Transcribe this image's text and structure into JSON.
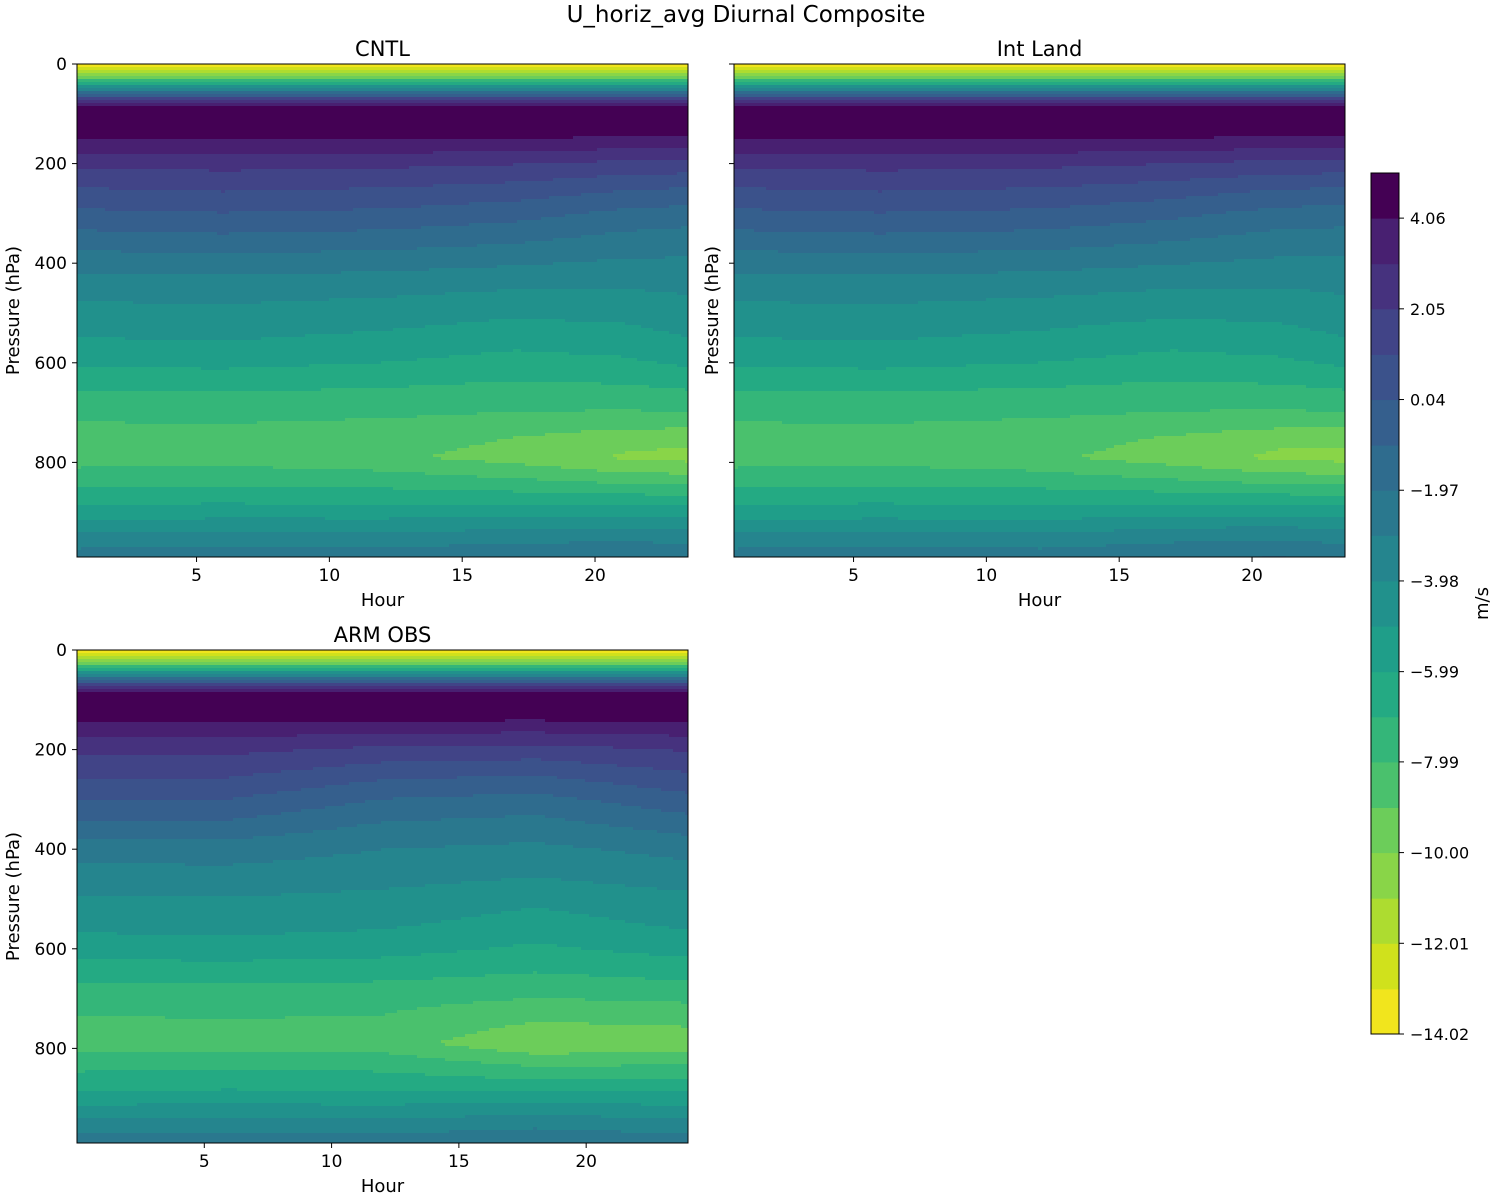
{
  "figure": {
    "title": "U_horiz_avg Diurnal Composite"
  },
  "chart_data": {
    "type": "contourf",
    "title": "U_horiz_avg Diurnal Composite",
    "colorbar": {
      "label": "m/s",
      "vmin": -14.02,
      "vmax": 5.1,
      "levels": [
        -14.02,
        -13.02,
        -12.01,
        -11.01,
        -10.0,
        -9.0,
        -7.99,
        -6.99,
        -5.99,
        -4.98,
        -3.98,
        -2.97,
        -1.97,
        -0.97,
        0.04,
        1.04,
        2.05,
        3.05,
        4.06,
        5.06
      ],
      "tick_labels": [
        "4.06",
        "2.05",
        "0.04",
        "−1.97",
        "−3.98",
        "−5.99",
        "−7.99",
        "−10.00",
        "−12.01",
        "−14.02"
      ],
      "tick_values": [
        4.06,
        2.05,
        0.04,
        -1.97,
        -3.98,
        -5.99,
        -7.99,
        -10.0,
        -12.01,
        -14.02
      ],
      "colors": [
        "#f1e51d",
        "#d0e11c",
        "#addc30",
        "#89d548",
        "#6ccd5a",
        "#4ac16d",
        "#34b679",
        "#24aa83",
        "#1f9e89",
        "#21918c",
        "#25858e",
        "#2a788e",
        "#2f6c8e",
        "#355f8d",
        "#3b528b",
        "#414487",
        "#46327e",
        "#482071",
        "#440154"
      ]
    },
    "panels": [
      {
        "id": "cntl",
        "title": "CNTL",
        "xlabel": "Hour",
        "ylabel": "Pressure (hPa)",
        "xlim": [
          0.5,
          23.5
        ],
        "ylim": [
          990,
          0
        ],
        "xticks": [
          5,
          10,
          15,
          20
        ],
        "yticks": [
          0,
          200,
          400,
          600,
          800
        ],
        "show_yticklabels": true,
        "x": [
          0.5,
          6,
          12,
          17,
          21,
          23.5
        ],
        "p": [
          0,
          15,
          30,
          45,
          60,
          70,
          85,
          100,
          125,
          150,
          175,
          200,
          250,
          300,
          350,
          400,
          450,
          500,
          550,
          600,
          650,
          700,
          750,
          790,
          830,
          870,
          900,
          930,
          960,
          990
        ],
        "profile": [
          -14.0,
          -11.5,
          -8.5,
          -5.0,
          -1.0,
          2.0,
          4.0,
          4.9,
          4.9,
          4.0,
          3.0,
          2.0,
          0.5,
          -0.8,
          -1.9,
          -2.9,
          -3.8,
          -4.5,
          -5.2,
          -6.0,
          -7.0,
          -7.9,
          -8.9,
          -9.3,
          -8.0,
          -6.6,
          -5.6,
          -4.5,
          -3.5,
          -2.5
        ],
        "anomaly": [
          [
            0,
            0,
            0,
            0,
            0,
            0
          ],
          [
            0.6,
            0.8,
            0.6,
            0.2,
            -0.4,
            -0.6
          ],
          [
            0.2,
            0.3,
            0.0,
            -0.4,
            -0.2,
            0.2
          ],
          [
            0.7,
            0.8,
            0.5,
            -0.1,
            -0.8,
            -1.0
          ],
          [
            0.1,
            0.2,
            0.2,
            0.4,
            0.6,
            0.4
          ]
        ]
      },
      {
        "id": "int-land",
        "title": "Int Land",
        "xlabel": "Hour",
        "ylabel": "Pressure (hPa)",
        "xlim": [
          0.5,
          23.5
        ],
        "ylim": [
          990,
          0
        ],
        "xticks": [
          5,
          10,
          15,
          20
        ],
        "yticks": [
          0,
          200,
          400,
          600,
          800
        ],
        "show_yticklabels": false,
        "x": [
          0.5,
          6,
          12,
          17,
          21,
          23.5
        ],
        "p": [
          0,
          15,
          30,
          45,
          60,
          70,
          85,
          100,
          125,
          150,
          175,
          200,
          250,
          300,
          350,
          400,
          450,
          500,
          550,
          600,
          650,
          700,
          750,
          790,
          830,
          870,
          900,
          930,
          960,
          990
        ],
        "profile": [
          -14.0,
          -11.5,
          -8.5,
          -5.0,
          -1.0,
          2.0,
          4.0,
          4.9,
          4.9,
          4.0,
          3.0,
          2.0,
          0.5,
          -0.8,
          -1.9,
          -2.9,
          -3.8,
          -4.5,
          -5.2,
          -6.0,
          -7.0,
          -7.9,
          -8.9,
          -9.3,
          -8.0,
          -6.6,
          -5.6,
          -4.5,
          -3.5,
          -2.5
        ],
        "anomaly": [
          [
            0,
            0,
            0,
            0,
            0,
            0
          ],
          [
            0.6,
            0.8,
            0.6,
            0.1,
            -0.5,
            -0.6
          ],
          [
            0.2,
            0.3,
            0.0,
            -0.4,
            -0.2,
            0.2
          ],
          [
            0.7,
            0.8,
            0.5,
            -0.2,
            -0.9,
            -1.0
          ],
          [
            0.1,
            0.2,
            0.1,
            0.5,
            0.7,
            0.4
          ]
        ]
      },
      {
        "id": "arm-obs",
        "title": "ARM OBS",
        "xlabel": "Hour",
        "ylabel": "Pressure (hPa)",
        "xlim": [
          0,
          24
        ],
        "ylim": [
          990,
          0
        ],
        "xticks": [
          5,
          10,
          15,
          20
        ],
        "yticks": [
          0,
          200,
          400,
          600,
          800
        ],
        "show_yticklabels": true,
        "x": [
          0,
          6,
          12,
          18,
          24
        ],
        "p": [
          0,
          15,
          30,
          45,
          60,
          70,
          85,
          100,
          125,
          150,
          175,
          200,
          250,
          300,
          350,
          400,
          450,
          500,
          550,
          600,
          650,
          700,
          750,
          790,
          830,
          870,
          900,
          930,
          960,
          990
        ],
        "profile": [
          -14.0,
          -11.5,
          -8.5,
          -5.0,
          -1.0,
          2.0,
          4.0,
          4.9,
          4.8,
          3.8,
          2.8,
          1.9,
          0.5,
          -0.8,
          -1.9,
          -2.9,
          -3.6,
          -4.4,
          -5.0,
          -5.8,
          -6.8,
          -7.8,
          -8.6,
          -9.2,
          -7.8,
          -6.6,
          -5.5,
          -4.4,
          -3.4,
          -2.3
        ],
        "anomaly": [
          [
            0,
            0,
            0,
            0,
            0
          ],
          [
            0.8,
            0.8,
            -0.2,
            -0.5,
            0.5
          ],
          [
            0.3,
            0.4,
            0.2,
            -0.4,
            0.2
          ],
          [
            0.6,
            0.7,
            0.6,
            -0.6,
            -0.4
          ],
          [
            0.0,
            0.1,
            0.0,
            0.4,
            0.0
          ]
        ]
      }
    ]
  }
}
